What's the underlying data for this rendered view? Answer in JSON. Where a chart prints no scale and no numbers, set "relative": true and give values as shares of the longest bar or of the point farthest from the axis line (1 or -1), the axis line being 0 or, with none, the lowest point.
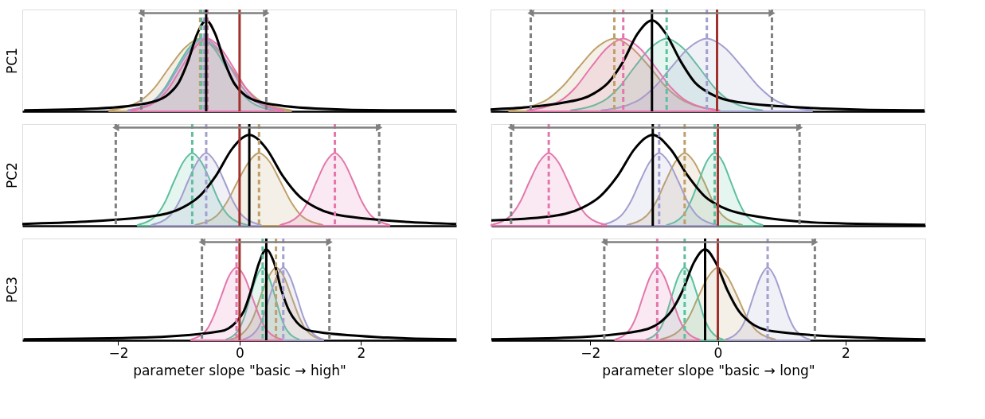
{
  "chart_data": [
    {
      "type": "area",
      "relative": true,
      "ylabel": "PC1",
      "xlim": [
        -3.58,
        3.57
      ],
      "tick_labels": false,
      "grid": false,
      "series": [
        {
          "color": "#bfa06a",
          "x": [
            -2.15,
            -1.65,
            -1.4,
            -1.15,
            -0.9,
            -0.65,
            -0.4,
            -0.15,
            0.1,
            0.35,
            0.85
          ],
          "values": [
            0.01,
            0.11,
            0.26,
            0.49,
            0.7,
            0.8,
            0.7,
            0.49,
            0.26,
            0.11,
            0.01
          ]
        },
        {
          "color": "#5fbf9f",
          "x": [
            -1.83,
            -1.43,
            -1.23,
            -1.03,
            -0.83,
            -0.63,
            -0.43,
            -0.23,
            -0.03,
            0.17,
            0.57
          ],
          "values": [
            0.01,
            0.11,
            0.26,
            0.49,
            0.7,
            0.8,
            0.7,
            0.49,
            0.26,
            0.11,
            0.01
          ]
        },
        {
          "color": "#a39fcf",
          "x": [
            -1.84,
            -1.42,
            -1.21,
            -1.0,
            -0.79,
            -0.58,
            -0.37,
            -0.16,
            0.05,
            0.26,
            0.68
          ],
          "values": [
            0.01,
            0.11,
            0.26,
            0.49,
            0.7,
            0.8,
            0.7,
            0.49,
            0.26,
            0.11,
            0.01
          ]
        },
        {
          "color": "#e377ac",
          "x": [
            -1.79,
            -1.37,
            -1.16,
            -0.95,
            -0.74,
            -0.53,
            -0.32,
            -0.11,
            0.1,
            0.31,
            0.73
          ],
          "values": [
            0.01,
            0.11,
            0.26,
            0.49,
            0.7,
            0.8,
            0.7,
            0.49,
            0.26,
            0.11,
            0.01
          ]
        },
        {
          "type": "line",
          "color": "#000000",
          "x": [
            -3.55,
            -2.35,
            -1.45,
            -1.15,
            -1.0,
            -0.85,
            -0.7,
            -0.55,
            -0.4,
            -0.25,
            -0.1,
            0.05,
            0.35,
            1.25,
            2.45,
            3.55
          ],
          "values": [
            0.01,
            0.03,
            0.1,
            0.2,
            0.32,
            0.55,
            0.85,
            1,
            0.85,
            0.55,
            0.32,
            0.2,
            0.1,
            0.03,
            0.01,
            0.01
          ]
        }
      ],
      "ref_lines": [
        {
          "axis": "x",
          "value": -0.65,
          "color": "#bfa06a",
          "line_style": "dashed"
        },
        {
          "axis": "x",
          "value": -0.63,
          "color": "#5fbf9f",
          "line_style": "dashed"
        },
        {
          "axis": "x",
          "value": -0.58,
          "color": "#a39fcf",
          "line_style": "dashed"
        },
        {
          "axis": "x",
          "value": -0.53,
          "color": "#e377ac",
          "line_style": "dashed"
        },
        {
          "axis": "x",
          "value": -0.55,
          "color": "#000000",
          "line_style": "solid"
        },
        {
          "axis": "x",
          "value": 0,
          "color": "#a0322d",
          "line_style": "solid"
        },
        {
          "axis": "x",
          "value": -1.62,
          "color": "#808080",
          "line_style": "dashed"
        },
        {
          "axis": "x",
          "value": 0.44,
          "color": "#808080",
          "line_style": "dashed"
        }
      ]
    },
    {
      "type": "area",
      "relative": true,
      "xlim": [
        -3.55,
        3.25
      ],
      "tick_labels": false,
      "grid": false,
      "series": [
        {
          "color": "#bfa06a",
          "x": [
            -3.26,
            -2.71,
            -2.44,
            -2.16,
            -1.89,
            -1.61,
            -1.34,
            -1.06,
            -0.79,
            -0.51,
            0.04
          ],
          "values": [
            0.01,
            0.11,
            0.26,
            0.49,
            0.7,
            0.8,
            0.7,
            0.49,
            0.26,
            0.11,
            0.01
          ]
        },
        {
          "color": "#5fbf9f",
          "x": [
            -2.29,
            -1.79,
            -1.54,
            -1.29,
            -1.04,
            -0.79,
            -0.54,
            -0.29,
            -0.04,
            0.21,
            0.71
          ],
          "values": [
            0.01,
            0.11,
            0.26,
            0.49,
            0.7,
            0.8,
            0.7,
            0.49,
            0.26,
            0.11,
            0.01
          ]
        },
        {
          "color": "#a39fcf",
          "x": [
            -1.81,
            -1.26,
            -0.99,
            -0.71,
            -0.44,
            -0.16,
            0.12,
            0.39,
            0.67,
            0.94,
            1.49
          ],
          "values": [
            0.01,
            0.11,
            0.26,
            0.49,
            0.7,
            0.8,
            0.7,
            0.49,
            0.26,
            0.11,
            0.01
          ]
        },
        {
          "color": "#e377ac",
          "x": [
            -2.97,
            -2.47,
            -2.22,
            -1.97,
            -1.72,
            -1.47,
            -1.22,
            -0.97,
            -0.72,
            -0.47,
            0.03
          ],
          "values": [
            0.01,
            0.11,
            0.26,
            0.49,
            0.7,
            0.8,
            0.7,
            0.49,
            0.26,
            0.11,
            0.01
          ]
        },
        {
          "type": "line",
          "color": "#000000",
          "x": [
            -3.55,
            -2.37,
            -1.92,
            -1.7,
            -1.47,
            -1.25,
            -1.02,
            -0.8,
            -0.57,
            -0.35,
            -0.12,
            0.33,
            1.68,
            3.07,
            3.25
          ],
          "values": [
            0.02,
            0.1,
            0.2,
            0.32,
            0.55,
            0.85,
            1,
            0.85,
            0.55,
            0.32,
            0.2,
            0.1,
            0.03,
            0.01,
            0.01
          ]
        }
      ],
      "ref_lines": [
        {
          "axis": "x",
          "value": -1.61,
          "color": "#bfa06a",
          "line_style": "dashed"
        },
        {
          "axis": "x",
          "value": -0.79,
          "color": "#5fbf9f",
          "line_style": "dashed"
        },
        {
          "axis": "x",
          "value": -0.16,
          "color": "#a39fcf",
          "line_style": "dashed"
        },
        {
          "axis": "x",
          "value": -1.47,
          "color": "#e377ac",
          "line_style": "dashed"
        },
        {
          "axis": "x",
          "value": -1.02,
          "color": "#000000",
          "line_style": "solid"
        },
        {
          "axis": "x",
          "value": 0,
          "color": "#a0322d",
          "line_style": "solid"
        },
        {
          "axis": "x",
          "value": -2.92,
          "color": "#808080",
          "line_style": "dashed"
        },
        {
          "axis": "x",
          "value": 0.86,
          "color": "#808080",
          "line_style": "dashed"
        }
      ]
    },
    {
      "type": "area",
      "relative": true,
      "ylabel": "PC2",
      "xlim": [
        -3.58,
        3.57
      ],
      "tick_labels": false,
      "grid": false,
      "series": [
        {
          "color": "#bfa06a",
          "x": [
            -0.73,
            -0.38,
            -0.21,
            -0.03,
            0.15,
            0.32,
            0.5,
            0.67,
            0.85,
            1.02,
            1.37
          ],
          "values": [
            0.01,
            0.11,
            0.26,
            0.49,
            0.7,
            0.8,
            0.7,
            0.49,
            0.26,
            0.11,
            0.01
          ]
        },
        {
          "color": "#5fbf9f",
          "x": [
            -1.68,
            -1.38,
            -1.23,
            -1.08,
            -0.93,
            -0.78,
            -0.63,
            -0.48,
            -0.33,
            -0.18,
            0.12
          ],
          "values": [
            0.01,
            0.11,
            0.26,
            0.49,
            0.7,
            0.8,
            0.7,
            0.49,
            0.26,
            0.11,
            0.01
          ]
        },
        {
          "color": "#a39fcf",
          "x": [
            -1.45,
            -1.15,
            -1.0,
            -0.85,
            -0.7,
            -0.55,
            -0.4,
            -0.25,
            -0.1,
            0.05,
            0.35
          ],
          "values": [
            0.01,
            0.11,
            0.26,
            0.49,
            0.7,
            0.8,
            0.7,
            0.49,
            0.26,
            0.11,
            0.01
          ]
        },
        {
          "color": "#e377ac",
          "x": [
            0.67,
            0.97,
            1.12,
            1.27,
            1.42,
            1.57,
            1.72,
            1.87,
            2.02,
            2.17,
            2.47
          ],
          "values": [
            0.01,
            0.11,
            0.26,
            0.49,
            0.7,
            0.8,
            0.7,
            0.49,
            0.26,
            0.11,
            0.01
          ]
        },
        {
          "type": "line",
          "color": "#000000",
          "x": [
            -3.58,
            -1.49,
            -0.94,
            -0.67,
            -0.39,
            -0.12,
            0.16,
            0.44,
            0.71,
            0.99,
            1.26,
            1.81,
            3.57
          ],
          "values": [
            0.02,
            0.1,
            0.2,
            0.32,
            0.55,
            0.85,
            1,
            0.85,
            0.55,
            0.32,
            0.2,
            0.1,
            0.02
          ]
        }
      ],
      "ref_lines": [
        {
          "axis": "x",
          "value": 0.32,
          "color": "#bfa06a",
          "line_style": "dashed"
        },
        {
          "axis": "x",
          "value": -0.78,
          "color": "#5fbf9f",
          "line_style": "dashed"
        },
        {
          "axis": "x",
          "value": -0.55,
          "color": "#a39fcf",
          "line_style": "dashed"
        },
        {
          "axis": "x",
          "value": 1.57,
          "color": "#e377ac",
          "line_style": "dashed"
        },
        {
          "axis": "x",
          "value": 0.16,
          "color": "#000000",
          "line_style": "solid"
        },
        {
          "axis": "x",
          "value": 0,
          "color": "#a0322d",
          "line_style": "solid"
        },
        {
          "axis": "x",
          "value": -2.04,
          "color": "#808080",
          "line_style": "dashed"
        },
        {
          "axis": "x",
          "value": 2.3,
          "color": "#808080",
          "line_style": "dashed"
        }
      ]
    },
    {
      "type": "area",
      "relative": true,
      "xlim": [
        -3.55,
        3.25
      ],
      "tick_labels": false,
      "grid": false,
      "series": [
        {
          "color": "#bfa06a",
          "x": [
            -1.42,
            -1.12,
            -0.97,
            -0.82,
            -0.67,
            -0.52,
            -0.37,
            -0.22,
            -0.07,
            0.08,
            0.38
          ],
          "values": [
            0.01,
            0.11,
            0.26,
            0.49,
            0.7,
            0.8,
            0.7,
            0.49,
            0.26,
            0.11,
            0.01
          ]
        },
        {
          "color": "#5fbf9f",
          "x": [
            -0.8,
            -0.55,
            -0.43,
            -0.3,
            -0.18,
            -0.05,
            0.08,
            0.2,
            0.33,
            0.45,
            0.7
          ],
          "values": [
            0.01,
            0.11,
            0.26,
            0.49,
            0.7,
            0.8,
            0.7,
            0.49,
            0.26,
            0.11,
            0.01
          ]
        },
        {
          "color": "#a39fcf",
          "x": [
            -1.82,
            -1.52,
            -1.37,
            -1.22,
            -1.07,
            -0.92,
            -0.77,
            -0.62,
            -0.47,
            -0.32,
            -0.02
          ],
          "values": [
            0.01,
            0.11,
            0.26,
            0.49,
            0.7,
            0.8,
            0.7,
            0.49,
            0.26,
            0.11,
            0.01
          ]
        },
        {
          "color": "#e377ac",
          "x": [
            -3.55,
            -3.25,
            -3.1,
            -2.95,
            -2.8,
            -2.65,
            -2.5,
            -2.35,
            -2.2,
            -2.05,
            -1.75
          ],
          "values": [
            0.01,
            0.11,
            0.26,
            0.49,
            0.7,
            0.8,
            0.7,
            0.49,
            0.26,
            0.11,
            0.01
          ]
        },
        {
          "type": "line",
          "color": "#000000",
          "x": [
            -3.55,
            -2.67,
            -2.12,
            -1.85,
            -1.57,
            -1.3,
            -1.02,
            -0.75,
            -0.47,
            -0.2,
            0.08,
            0.63,
            1.73,
            3.25
          ],
          "values": [
            0.06,
            0.1,
            0.2,
            0.32,
            0.55,
            0.85,
            1,
            0.85,
            0.55,
            0.32,
            0.2,
            0.1,
            0.03,
            0.01
          ]
        }
      ],
      "ref_lines": [
        {
          "axis": "x",
          "value": -0.52,
          "color": "#bfa06a",
          "line_style": "dashed"
        },
        {
          "axis": "x",
          "value": -0.05,
          "color": "#5fbf9f",
          "line_style": "dashed"
        },
        {
          "axis": "x",
          "value": -0.92,
          "color": "#a39fcf",
          "line_style": "dashed"
        },
        {
          "axis": "x",
          "value": -2.65,
          "color": "#e377ac",
          "line_style": "dashed"
        },
        {
          "axis": "x",
          "value": -1.02,
          "color": "#000000",
          "line_style": "solid"
        },
        {
          "axis": "x",
          "value": 0,
          "color": "#a0322d",
          "line_style": "solid"
        },
        {
          "axis": "x",
          "value": -3.24,
          "color": "#808080",
          "line_style": "dashed"
        },
        {
          "axis": "x",
          "value": 1.28,
          "color": "#808080",
          "line_style": "dashed"
        }
      ]
    },
    {
      "type": "area",
      "relative": true,
      "ylabel": "PC3",
      "xlabel": "parameter slope \"basic → high\"",
      "xlim": [
        -3.58,
        3.57
      ],
      "xticks": [
        {
          "value": -2,
          "label": "−2"
        },
        {
          "value": 0,
          "label": "0"
        },
        {
          "value": 2,
          "label": "2"
        }
      ],
      "tick_labels": "x",
      "grid": false,
      "series": [
        {
          "color": "#bfa06a",
          "x": [
            -0.15,
            0.1,
            0.23,
            0.35,
            0.48,
            0.6,
            0.73,
            0.85,
            0.98,
            1.1,
            1.35
          ],
          "values": [
            0.01,
            0.11,
            0.26,
            0.49,
            0.7,
            0.8,
            0.7,
            0.49,
            0.26,
            0.11,
            0.01
          ]
        },
        {
          "color": "#5fbf9f",
          "x": [
            -0.22,
            -0.02,
            0.08,
            0.18,
            0.28,
            0.38,
            0.48,
            0.58,
            0.68,
            0.78,
            0.98
          ],
          "values": [
            0.01,
            0.11,
            0.26,
            0.49,
            0.7,
            0.8,
            0.7,
            0.49,
            0.26,
            0.11,
            0.01
          ]
        },
        {
          "color": "#a39fcf",
          "x": [
            0.06,
            0.28,
            0.39,
            0.5,
            0.61,
            0.72,
            0.83,
            0.94,
            1.05,
            1.16,
            1.38
          ],
          "values": [
            0.01,
            0.11,
            0.26,
            0.49,
            0.7,
            0.8,
            0.7,
            0.49,
            0.26,
            0.11,
            0.01
          ]
        },
        {
          "color": "#e377ac",
          "x": [
            -0.8,
            -0.55,
            -0.43,
            -0.3,
            -0.18,
            -0.05,
            0.08,
            0.2,
            0.33,
            0.45,
            0.7
          ],
          "values": [
            0.01,
            0.11,
            0.26,
            0.49,
            0.7,
            0.8,
            0.7,
            0.49,
            0.26,
            0.11,
            0.01
          ]
        },
        {
          "type": "line",
          "color": "#000000",
          "x": [
            -3.56,
            -1.56,
            -0.31,
            -0.06,
            0.07,
            0.19,
            0.32,
            0.44,
            0.57,
            0.69,
            0.82,
            0.94,
            1.19,
            2.44,
            3.57
          ],
          "values": [
            0.01,
            0.03,
            0.1,
            0.2,
            0.32,
            0.55,
            0.85,
            1,
            0.85,
            0.55,
            0.32,
            0.2,
            0.1,
            0.03,
            0.01
          ]
        }
      ],
      "ref_lines": [
        {
          "axis": "x",
          "value": 0.6,
          "color": "#bfa06a",
          "line_style": "dashed"
        },
        {
          "axis": "x",
          "value": 0.38,
          "color": "#5fbf9f",
          "line_style": "dashed"
        },
        {
          "axis": "x",
          "value": 0.72,
          "color": "#a39fcf",
          "line_style": "dashed"
        },
        {
          "axis": "x",
          "value": -0.05,
          "color": "#e377ac",
          "line_style": "dashed"
        },
        {
          "axis": "x",
          "value": 0.44,
          "color": "#000000",
          "line_style": "solid"
        },
        {
          "axis": "x",
          "value": 0,
          "color": "#a0322d",
          "line_style": "solid"
        },
        {
          "axis": "x",
          "value": -0.62,
          "color": "#808080",
          "line_style": "dashed"
        },
        {
          "axis": "x",
          "value": 1.48,
          "color": "#808080",
          "line_style": "dashed"
        }
      ]
    },
    {
      "type": "area",
      "relative": true,
      "xlabel": "parameter slope \"basic → long\"",
      "xlim": [
        -3.55,
        3.25
      ],
      "xticks": [
        {
          "value": -2,
          "label": "−2"
        },
        {
          "value": 0,
          "label": "0"
        },
        {
          "value": 2,
          "label": "2"
        }
      ],
      "tick_labels": "x",
      "grid": false,
      "series": [
        {
          "color": "#bfa06a",
          "x": [
            -0.9,
            -0.6,
            -0.45,
            -0.3,
            -0.15,
            0,
            0.15,
            0.3,
            0.45,
            0.6,
            0.9
          ],
          "values": [
            0.01,
            0.11,
            0.26,
            0.49,
            0.7,
            0.8,
            0.7,
            0.49,
            0.26,
            0.11,
            0.01
          ]
        },
        {
          "color": "#5fbf9f",
          "x": [
            -1.12,
            -0.92,
            -0.82,
            -0.72,
            -0.62,
            -0.52,
            -0.42,
            -0.32,
            -0.22,
            -0.12,
            0.08
          ],
          "values": [
            0.01,
            0.11,
            0.26,
            0.49,
            0.7,
            0.8,
            0.7,
            0.49,
            0.26,
            0.11,
            0.01
          ]
        },
        {
          "color": "#a39fcf",
          "x": [
            0.12,
            0.34,
            0.45,
            0.56,
            0.67,
            0.78,
            0.89,
            1.0,
            1.11,
            1.22,
            1.44
          ],
          "values": [
            0.01,
            0.11,
            0.26,
            0.49,
            0.7,
            0.8,
            0.7,
            0.49,
            0.26,
            0.11,
            0.01
          ]
        },
        {
          "color": "#e377ac",
          "x": [
            -1.61,
            -1.39,
            -1.28,
            -1.17,
            -1.06,
            -0.95,
            -0.84,
            -0.73,
            -0.62,
            -0.51,
            -0.29
          ],
          "values": [
            0.01,
            0.11,
            0.26,
            0.49,
            0.7,
            0.8,
            0.7,
            0.49,
            0.26,
            0.11,
            0.01
          ]
        },
        {
          "type": "line",
          "color": "#000000",
          "x": [
            -3.55,
            -2.3,
            -1.25,
            -0.9,
            -0.73,
            -0.55,
            -0.38,
            -0.2,
            -0.03,
            0.15,
            0.33,
            0.5,
            0.85,
            2.25,
            3.25
          ],
          "values": [
            0.01,
            0.03,
            0.1,
            0.2,
            0.32,
            0.55,
            0.85,
            1,
            0.85,
            0.55,
            0.32,
            0.2,
            0.1,
            0.03,
            0.01
          ]
        }
      ],
      "ref_lines": [
        {
          "axis": "x",
          "value": -0.52,
          "color": "#5fbf9f",
          "line_style": "dashed"
        },
        {
          "axis": "x",
          "value": 0.78,
          "color": "#a39fcf",
          "line_style": "dashed"
        },
        {
          "axis": "x",
          "value": -0.95,
          "color": "#e377ac",
          "line_style": "dashed"
        },
        {
          "axis": "x",
          "value": -0.2,
          "color": "#000000",
          "line_style": "solid"
        },
        {
          "axis": "x",
          "value": 0,
          "color": "#a0322d",
          "line_style": "solid"
        },
        {
          "axis": "x",
          "value": -1.78,
          "color": "#808080",
          "line_style": "dashed"
        },
        {
          "axis": "x",
          "value": 1.52,
          "color": "#808080",
          "line_style": "dashed"
        }
      ]
    }
  ]
}
